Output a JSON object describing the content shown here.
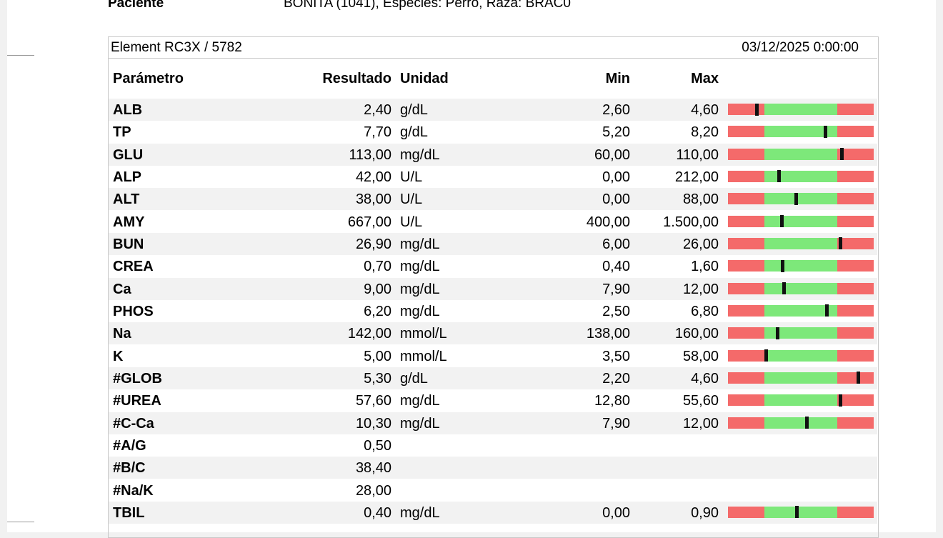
{
  "header": {
    "patient_label": "Paciente",
    "patient_value": "BONITA (1041), Especies: Perro, Raza: BRAC0"
  },
  "table": {
    "device": "Element RC3X / 5782",
    "date": "03/12/2025 0:00:00",
    "columns": [
      "Parámetro",
      "Resultado",
      "Unidad",
      "Min",
      "Max"
    ],
    "rows": [
      [
        "ALB",
        "2,40",
        "g/dL",
        "2,60",
        "4,60"
      ],
      [
        "TP",
        "7,70",
        "g/dL",
        "5,20",
        "8,20"
      ],
      [
        "GLU",
        "113,00",
        "mg/dL",
        "60,00",
        "110,00"
      ],
      [
        "ALP",
        "42,00",
        "U/L",
        "0,00",
        "212,00"
      ],
      [
        "ALT",
        "38,00",
        "U/L",
        "0,00",
        "88,00"
      ],
      [
        "AMY",
        "667,00",
        "U/L",
        "400,00",
        "1.500,00"
      ],
      [
        "BUN",
        "26,90",
        "mg/dL",
        "6,00",
        "26,00"
      ],
      [
        "CREA",
        "0,70",
        "mg/dL",
        "0,40",
        "1,60"
      ],
      [
        "Ca",
        "9,00",
        "mg/dL",
        "7,90",
        "12,00"
      ],
      [
        "PHOS",
        "6,20",
        "mg/dL",
        "2,50",
        "6,80"
      ],
      [
        "Na",
        "142,00",
        "mmol/L",
        "138,00",
        "160,00"
      ],
      [
        "K",
        "5,00",
        "mmol/L",
        "3,50",
        "58,00"
      ],
      [
        "#GLOB",
        "5,30",
        "g/dL",
        "2,20",
        "4,60"
      ],
      [
        "#UREA",
        "57,60",
        "mg/dL",
        "12,80",
        "55,60"
      ],
      [
        "#C-Ca",
        "10,30",
        "mg/dL",
        "7,90",
        "12,00"
      ],
      [
        "#A/G",
        "0,50"
      ],
      [
        "#B/C",
        "38,40"
      ],
      [
        "#Na/K",
        "28,00"
      ],
      [
        "TBIL",
        "0,40",
        "mg/dL",
        "0,00",
        "0,90"
      ]
    ]
  }
}
